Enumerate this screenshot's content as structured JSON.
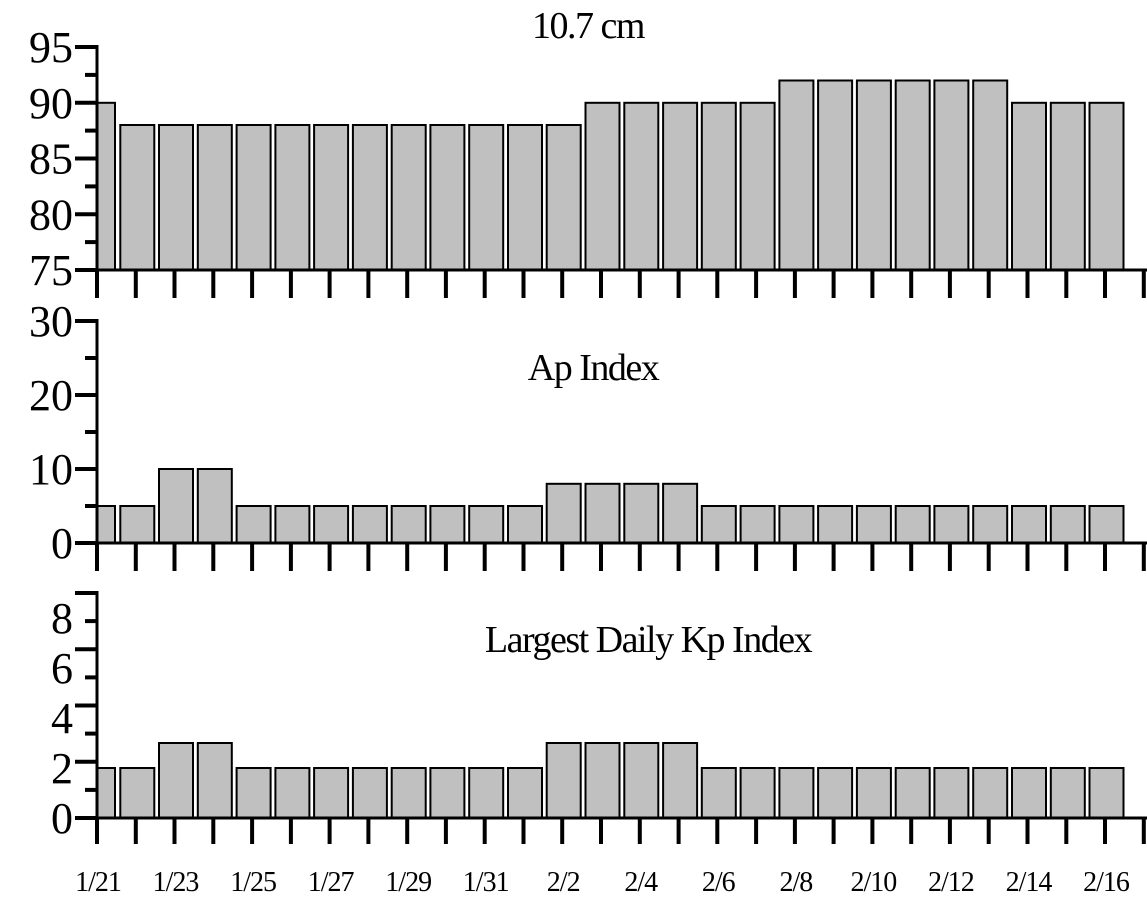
{
  "chart_data": [
    {
      "type": "bar",
      "title": "10.7 cm",
      "categories": [
        "1/21",
        "1/22",
        "1/23",
        "1/24",
        "1/25",
        "1/26",
        "1/27",
        "1/28",
        "1/29",
        "1/30",
        "1/31",
        "2/1",
        "2/2",
        "2/3",
        "2/4",
        "2/5",
        "2/6",
        "2/7",
        "2/8",
        "2/9",
        "2/10",
        "2/11",
        "2/12",
        "2/13",
        "2/14",
        "2/15",
        "2/16"
      ],
      "values": [
        90,
        88,
        88,
        88,
        88,
        88,
        88,
        88,
        88,
        88,
        88,
        88,
        88,
        90,
        90,
        90,
        90,
        90,
        92,
        92,
        92,
        92,
        92,
        92,
        90,
        90,
        90
      ],
      "ylim": [
        75,
        95
      ],
      "yticks": [
        "75",
        "80",
        "85",
        "90",
        "95"
      ]
    },
    {
      "type": "bar",
      "title": "Ap Index",
      "categories": [
        "1/21",
        "1/22",
        "1/23",
        "1/24",
        "1/25",
        "1/26",
        "1/27",
        "1/28",
        "1/29",
        "1/30",
        "1/31",
        "2/1",
        "2/2",
        "2/3",
        "2/4",
        "2/5",
        "2/6",
        "2/7",
        "2/8",
        "2/9",
        "2/10",
        "2/11",
        "2/12",
        "2/13",
        "2/14",
        "2/15",
        "2/16"
      ],
      "values": [
        5,
        5,
        10,
        10,
        5,
        5,
        5,
        5,
        5,
        5,
        5,
        5,
        8,
        8,
        8,
        8,
        5,
        5,
        5,
        5,
        5,
        5,
        5,
        5,
        5,
        5,
        5
      ],
      "ylim": [
        0,
        30
      ],
      "yticks": [
        "0",
        "10",
        "20",
        "30"
      ]
    },
    {
      "type": "bar",
      "title": "Largest Daily Kp Index",
      "categories": [
        "1/21",
        "1/22",
        "1/23",
        "1/24",
        "1/25",
        "1/26",
        "1/27",
        "1/28",
        "1/29",
        "1/30",
        "1/31",
        "2/1",
        "2/2",
        "2/3",
        "2/4",
        "2/5",
        "2/6",
        "2/7",
        "2/8",
        "2/9",
        "2/10",
        "2/11",
        "2/12",
        "2/13",
        "2/14",
        "2/15",
        "2/16"
      ],
      "values": [
        2,
        2,
        3,
        3,
        2,
        2,
        2,
        2,
        2,
        2,
        2,
        2,
        3,
        3,
        3,
        3,
        2,
        2,
        2,
        2,
        2,
        2,
        2,
        2,
        2,
        2,
        2
      ],
      "ylim": [
        0,
        9
      ],
      "yticks": [
        "0",
        "2",
        "4",
        "6",
        "8"
      ]
    }
  ],
  "x_tick_labels": [
    "1/21",
    "1/23",
    "1/25",
    "1/27",
    "1/29",
    "1/31",
    "2/2",
    "2/4",
    "2/6",
    "2/8",
    "2/10",
    "2/12",
    "2/14",
    "2/16"
  ]
}
